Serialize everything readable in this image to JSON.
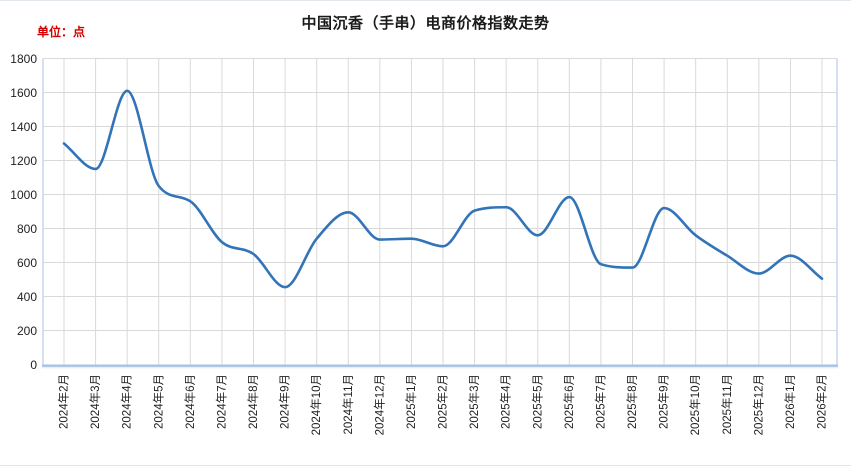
{
  "header": {
    "title": "中国沉香（手串）电商价格指数走势",
    "unit_label": "单位：点"
  },
  "chart_data": {
    "type": "line",
    "title": "中国沉香（手串）电商价格指数走势",
    "unit": "点",
    "smooth": true,
    "grid": true,
    "legend": "none",
    "categories": [
      "2024年2月",
      "2024年3月",
      "2024年4月",
      "2024年5月",
      "2024年6月",
      "2024年7月",
      "2024年8月",
      "2024年9月",
      "2024年10月",
      "2024年11月",
      "2024年12月",
      "2025年1月",
      "2025年2月",
      "2025年3月",
      "2025年4月",
      "2025年5月",
      "2025年6月",
      "2025年7月",
      "2025年8月",
      "2025年9月",
      "2025年10月",
      "2025年11月",
      "2025年12月",
      "2026年1月",
      "2026年2月"
    ],
    "values": [
      1300,
      1150,
      1610,
      1050,
      960,
      720,
      650,
      455,
      740,
      895,
      735,
      740,
      695,
      905,
      925,
      760,
      985,
      590,
      570,
      920,
      760,
      640,
      535,
      640,
      505
    ],
    "ylim": [
      0,
      1800
    ],
    "ytick_step": 200,
    "y_ticks": [
      0,
      200,
      400,
      600,
      800,
      1000,
      1200,
      1400,
      1600,
      1800
    ],
    "colors": {
      "line": "#3274B8",
      "grid": "#D9D9D9",
      "axis": "#A6C3E5",
      "plot_border": "#C9D9EE",
      "tick_text": "#1F1F1F",
      "title_text": "#1A1A1A",
      "unit_text": "#D00000"
    }
  }
}
